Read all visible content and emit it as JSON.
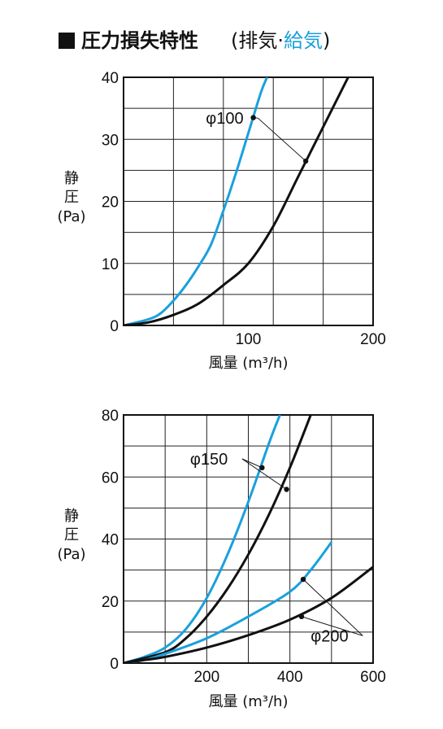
{
  "title": {
    "main": "圧力損失特性",
    "paren_open": "(",
    "exhaust": "排気",
    "dot": "·",
    "supply": "給気",
    "paren_close": ")"
  },
  "colors": {
    "exhaust": "#111111",
    "supply": "#1aa0dc"
  },
  "chart_data": [
    {
      "type": "line",
      "xlabel": "風量 (m³/h)",
      "ylabel": [
        "静",
        "圧",
        "(Pa)"
      ],
      "xlim": [
        0,
        200
      ],
      "ylim": [
        0,
        40
      ],
      "x_ticks": [
        100,
        200
      ],
      "y_ticks": [
        0,
        10,
        20,
        30,
        40
      ],
      "grid": true,
      "annotations": [
        {
          "text": "φ100",
          "label_at": [
            66,
            32.5
          ],
          "points": [
            [
              104,
              33.5
            ],
            [
              146,
              26.5
            ]
          ]
        }
      ],
      "series": [
        {
          "group": "φ100",
          "kind": "supply",
          "x": [
            0,
            20,
            30,
            40,
            50,
            60,
            70,
            80,
            90,
            100,
            110,
            115
          ],
          "y": [
            0,
            1,
            2,
            4,
            6.5,
            9.5,
            13,
            18.5,
            24.5,
            31,
            37.5,
            40
          ]
        },
        {
          "group": "φ100",
          "kind": "exhaust",
          "x": [
            0,
            20,
            40,
            60,
            80,
            100,
            120,
            140,
            160,
            180
          ],
          "y": [
            0,
            0.5,
            1.7,
            3.5,
            6.5,
            10,
            16,
            24,
            32,
            40
          ]
        }
      ]
    },
    {
      "type": "line",
      "xlabel": "風量 (m³/h)",
      "ylabel": [
        "静",
        "圧",
        "(Pa)"
      ],
      "xlim": [
        0,
        600
      ],
      "ylim": [
        0,
        80
      ],
      "x_ticks": [
        200,
        400,
        600
      ],
      "y_ticks": [
        0,
        20,
        40,
        60,
        80
      ],
      "grid": true,
      "annotations": [
        {
          "text": "φ150",
          "label_at": [
            160,
            64
          ],
          "points": [
            [
              333,
              63
            ],
            [
              392,
              56
            ]
          ]
        },
        {
          "text": "φ200",
          "label_at": [
            450,
            7
          ],
          "points": [
            [
              432,
              27
            ],
            [
              428,
              15
            ]
          ]
        }
      ],
      "series": [
        {
          "group": "φ150",
          "kind": "supply",
          "x": [
            0,
            50,
            100,
            150,
            200,
            250,
            300,
            350,
            376
          ],
          "y": [
            0,
            2,
            5,
            11,
            21,
            35,
            52,
            71,
            80
          ]
        },
        {
          "group": "φ150",
          "kind": "exhaust",
          "x": [
            0,
            100,
            150,
            200,
            250,
            300,
            350,
            400,
            450,
            460
          ],
          "y": [
            0,
            3.5,
            8,
            15,
            24,
            35,
            48,
            63,
            80,
            84
          ]
        },
        {
          "group": "φ200",
          "kind": "supply",
          "x": [
            0,
            50,
            100,
            200,
            300,
            400,
            450,
            500
          ],
          "y": [
            0,
            1,
            3,
            8,
            15,
            23,
            30,
            39
          ]
        },
        {
          "group": "φ200",
          "kind": "exhaust",
          "x": [
            0,
            50,
            100,
            200,
            300,
            400,
            500,
            600
          ],
          "y": [
            0,
            1,
            2,
            5,
            9,
            14,
            21,
            31
          ]
        }
      ]
    }
  ]
}
